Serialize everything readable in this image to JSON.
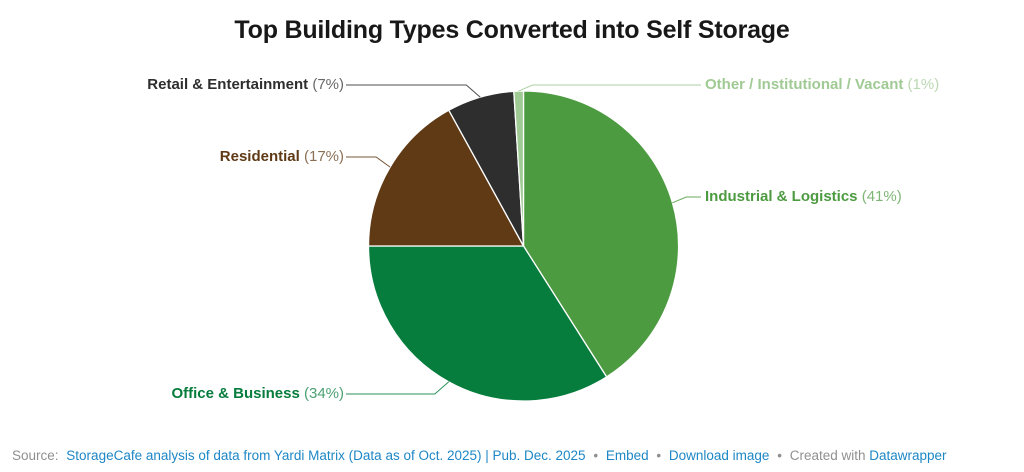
{
  "title": "Top Building Types Converted into Self Storage",
  "chart_data": {
    "type": "pie",
    "title": "Top Building Types Converted into Self Storage",
    "direction": "clockwise",
    "start_angle_deg": 0,
    "total": 100,
    "slices": [
      {
        "label": "Industrial & Logistics",
        "value": 41,
        "pct": "(41%)",
        "color": "#4d9b41"
      },
      {
        "label": "Office & Business",
        "value": 34,
        "pct": "(34%)",
        "color": "#067c3d"
      },
      {
        "label": "Residential",
        "value": 17,
        "pct": "(17%)",
        "color": "#5f3a15"
      },
      {
        "label": "Retail & Entertainment",
        "value": 7,
        "pct": "(7%)",
        "color": "#2e2e2e"
      },
      {
        "label": "Other / Institutional / Vacant",
        "value": 1,
        "pct": "(1%)",
        "color": "#a0ca94"
      }
    ],
    "legend_position": "callout-labels",
    "grid": false
  },
  "footer": {
    "source_prefix": "Source:",
    "source_link": "StorageCafe analysis of data from Yardi Matrix (Data as of Oct. 2025) | Pub. Dec. 2025",
    "sep": "•",
    "embed_label": "Embed",
    "download_label": "Download image",
    "created_with": "Created with",
    "datawrapper_label": "Datawrapper"
  }
}
